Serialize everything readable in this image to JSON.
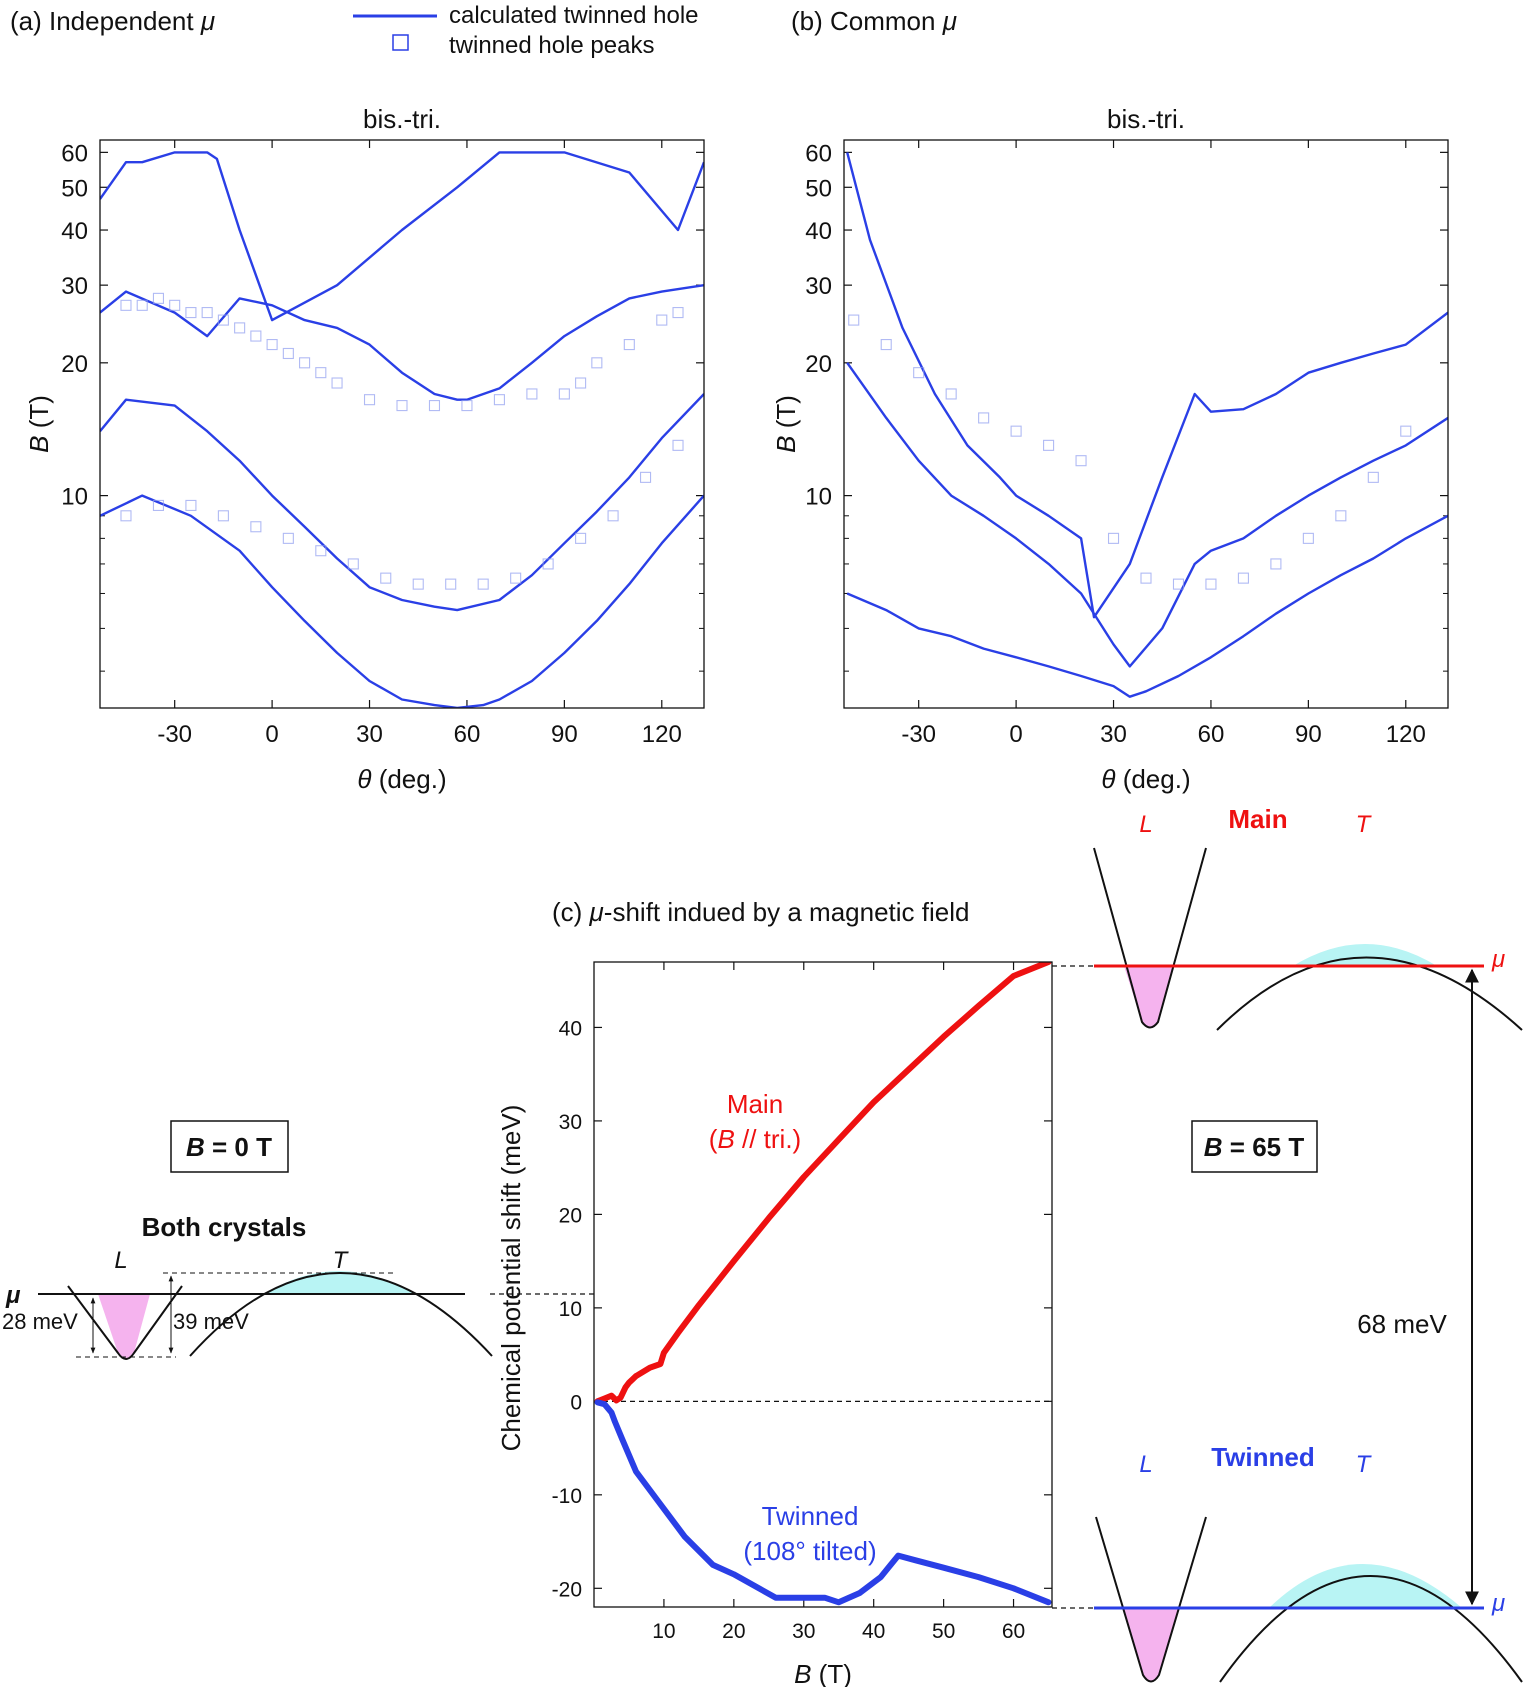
{
  "colors": {
    "blue": "#2a3fe6",
    "red": "#ee1111",
    "pink": "#f5b3ee",
    "cyan": "#b8f4f4",
    "marker": "#8e9cf0"
  },
  "legend": {
    "line_label": "calculated twinned hole",
    "marker_label": "twinned hole peaks"
  },
  "panel_a": {
    "label": "(a) Independent ",
    "mu": "μ",
    "title": "bis.-tri."
  },
  "panel_b": {
    "label": "(b) Common ",
    "mu": "μ",
    "title": "bis.-tri."
  },
  "panel_c": {
    "label_pre": "(c) ",
    "mu": "μ",
    "label_post": "-shift indued by a magnetic field"
  },
  "axes_ab": {
    "xlabel_sym": "θ",
    "xlabel_unit": " (deg.)",
    "ylabel_sym": "B",
    "ylabel_unit": " (T)",
    "xticks": [
      "-30",
      "0",
      "30",
      "60",
      "90",
      "120"
    ],
    "yticks": [
      "10",
      "20",
      "30",
      "40",
      "50",
      "60"
    ]
  },
  "axes_c": {
    "xlabel_sym": "B",
    "xlabel_unit": " (T)",
    "ylabel": "Chemical potential shift (meV)",
    "xticks": [
      "10",
      "20",
      "30",
      "40",
      "50",
      "60"
    ],
    "yticks": [
      "-20",
      "-10",
      "0",
      "10",
      "20",
      "30",
      "40"
    ]
  },
  "schematic_left": {
    "box_b": "B",
    "box_rest": " = 0 T",
    "title": "Both crystals",
    "L": "L",
    "T": "T",
    "mu": "μ",
    "gap1": "28 meV",
    "gap2": "39 meV"
  },
  "schematic_right": {
    "box_b": "B",
    "box_rest": " = 65 T",
    "main": "Main",
    "twinned": "Twinned",
    "L": "L",
    "T": "T",
    "mu": "μ",
    "gap": "68 meV"
  },
  "curve_labels": {
    "main_1": "Main",
    "main_2a": "(",
    "main_2b": "B",
    "main_2c": " // tri.)",
    "twin_1": "Twinned",
    "twin_2": "(108° tilted)"
  },
  "chart_data": [
    {
      "type": "line",
      "panel": "a",
      "title": "bis.-tri.",
      "xlabel": "θ (deg.)",
      "ylabel": "B (T)",
      "xlim": [
        -53,
        133
      ],
      "ylim": [
        3.3,
        64
      ],
      "yscale": "log",
      "legend": [
        "calculated twinned hole",
        "twinned hole peaks"
      ],
      "series": [
        {
          "name": "calculated twinned hole",
          "x": [
            -53,
            -45,
            -40,
            -30,
            -20,
            -17,
            -10,
            0,
            20,
            40,
            57,
            70,
            90,
            110,
            125,
            133
          ],
          "y": [
            47,
            57,
            57,
            60,
            60,
            58,
            40,
            25,
            30,
            40,
            50,
            60,
            60,
            54,
            40,
            57
          ]
        },
        {
          "name": "calculated twinned hole",
          "x": [
            -53,
            -45,
            -30,
            -20,
            -10,
            0,
            10,
            20,
            30,
            40,
            50,
            57,
            60,
            70,
            80,
            90,
            100,
            110,
            120,
            133
          ],
          "y": [
            26,
            29,
            26,
            23,
            28,
            27,
            25,
            24,
            22,
            19,
            17,
            16.5,
            16.5,
            17.5,
            20,
            23,
            25.5,
            28,
            29,
            30
          ]
        },
        {
          "name": "calculated twinned hole",
          "x": [
            -53,
            -45,
            -30,
            -20,
            -10,
            0,
            10,
            20,
            30,
            40,
            50,
            57,
            70,
            80,
            90,
            100,
            110,
            120,
            133
          ],
          "y": [
            14,
            16.5,
            16,
            14,
            12,
            10,
            8.5,
            7.2,
            6.2,
            5.8,
            5.6,
            5.5,
            5.8,
            6.6,
            7.8,
            9.2,
            11,
            13.5,
            17
          ]
        },
        {
          "name": "calculated twinned hole",
          "x": [
            -53,
            -40,
            -25,
            -10,
            0,
            10,
            20,
            30,
            40,
            50,
            57,
            65,
            70,
            80,
            90,
            100,
            110,
            120,
            133
          ],
          "y": [
            9,
            10,
            9,
            7.5,
            6.2,
            5.2,
            4.4,
            3.8,
            3.45,
            3.35,
            3.3,
            3.35,
            3.45,
            3.8,
            4.4,
            5.2,
            6.3,
            7.8,
            10
          ]
        },
        {
          "name": "twinned hole peaks",
          "x": [
            -45,
            -40,
            -35,
            -30,
            -25,
            -20,
            -15,
            -10,
            -5,
            0,
            5,
            10,
            15,
            20,
            30,
            40,
            50,
            60,
            70,
            80,
            90,
            95,
            100,
            110,
            120,
            125
          ],
          "y": [
            27,
            27,
            28,
            27,
            26,
            26,
            25,
            24,
            23,
            22,
            21,
            20,
            19,
            18,
            16.5,
            16,
            16,
            16,
            16.5,
            17,
            17,
            18,
            20,
            22,
            25,
            26
          ]
        },
        {
          "name": "twinned hole peaks",
          "x": [
            -45,
            -35,
            -25,
            -15,
            -5,
            5,
            15,
            25,
            35,
            45,
            55,
            65,
            75,
            85,
            95,
            105,
            115,
            125
          ],
          "y": [
            9,
            9.5,
            9.5,
            9,
            8.5,
            8,
            7.5,
            7,
            6.5,
            6.3,
            6.3,
            6.3,
            6.5,
            7,
            8,
            9,
            11,
            13
          ]
        }
      ]
    },
    {
      "type": "line",
      "panel": "b",
      "title": "bis.-tri.",
      "xlabel": "θ (deg.)",
      "ylabel": "B (T)",
      "xlim": [
        -53,
        133
      ],
      "ylim": [
        3.3,
        64
      ],
      "yscale": "log",
      "series": [
        {
          "name": "calculated twinned hole",
          "x": [
            -52,
            -45,
            -35,
            -25,
            -15,
            -5,
            0,
            10,
            20,
            24,
            35,
            45,
            55,
            60,
            70,
            80,
            90,
            100,
            110,
            120,
            133
          ],
          "y": [
            60,
            38,
            24,
            17,
            13,
            11,
            10,
            9,
            8,
            5.3,
            7,
            11,
            17,
            15.5,
            15.7,
            17,
            19,
            20,
            21,
            22,
            26
          ]
        },
        {
          "name": "calculated twinned hole",
          "x": [
            -52,
            -40,
            -30,
            -20,
            -10,
            0,
            10,
            20,
            30,
            35,
            45,
            55,
            60,
            70,
            80,
            90,
            100,
            110,
            120,
            133
          ],
          "y": [
            20,
            15,
            12,
            10,
            9,
            8,
            7,
            6,
            4.6,
            4.1,
            5,
            7,
            7.5,
            8,
            9,
            10,
            11,
            12,
            13,
            15
          ]
        },
        {
          "name": "calculated twinned hole",
          "x": [
            -52,
            -40,
            -30,
            -20,
            -10,
            0,
            10,
            20,
            30,
            35,
            40,
            50,
            60,
            70,
            80,
            90,
            100,
            110,
            120,
            133
          ],
          "y": [
            6,
            5.5,
            5,
            4.8,
            4.5,
            4.3,
            4.1,
            3.9,
            3.7,
            3.5,
            3.6,
            3.9,
            4.3,
            4.8,
            5.4,
            6,
            6.6,
            7.2,
            8,
            9
          ]
        },
        {
          "name": "twinned hole peaks",
          "x": [
            -50,
            -40,
            -30,
            -20,
            -10,
            0,
            10,
            20,
            30,
            40,
            50,
            60,
            70,
            80,
            90,
            100,
            110,
            120
          ],
          "y": [
            25,
            22,
            19,
            17,
            15,
            14,
            13,
            12,
            8,
            6.5,
            6.3,
            6.3,
            6.5,
            7,
            8,
            9,
            11,
            14
          ]
        }
      ]
    },
    {
      "type": "line",
      "panel": "c",
      "title": "μ-shift indued by a magnetic field",
      "xlabel": "B (T)",
      "ylabel": "Chemical potential shift (meV)",
      "xlim": [
        0,
        65.5
      ],
      "ylim": [
        -22,
        47
      ],
      "series": [
        {
          "name": "Main (B // tri.)",
          "x": [
            0.5,
            1.5,
            2.5,
            3.2,
            3.8,
            4.5,
            5,
            6,
            8,
            9.5,
            10,
            12,
            15,
            20,
            25,
            30,
            35,
            40,
            45,
            50,
            55,
            60,
            65
          ],
          "y": [
            0,
            0.3,
            0.6,
            0.1,
            0.4,
            1.5,
            2,
            2.7,
            3.6,
            4,
            5.2,
            7.3,
            10.3,
            15,
            19.6,
            24,
            28,
            32,
            35.5,
            39,
            42.3,
            45.5,
            47
          ]
        },
        {
          "name": "Twinned (108° tilted)",
          "x": [
            0.5,
            1.5,
            2.5,
            3,
            4,
            6,
            9,
            13,
            17,
            20,
            26,
            30,
            33,
            35,
            38,
            41,
            43.5,
            46,
            50,
            55,
            60,
            65
          ],
          "y": [
            -0.1,
            -0.3,
            -1.2,
            -2.2,
            -4,
            -7.5,
            -10.5,
            -14.5,
            -17.5,
            -18.5,
            -21,
            -21,
            -21,
            -21.5,
            -20.5,
            -18.8,
            -16.5,
            -17,
            -17.8,
            -18.8,
            -20,
            -21.5
          ]
        }
      ]
    }
  ]
}
